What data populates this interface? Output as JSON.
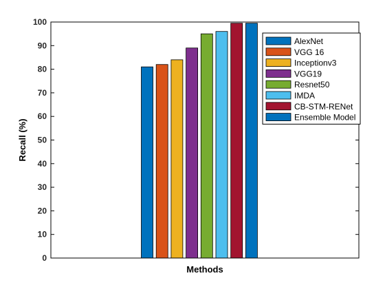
{
  "chart_data": {
    "type": "bar",
    "xlabel": "Methods",
    "ylabel": "Recall (%)",
    "ylim": [
      0,
      100
    ],
    "yticks": [
      0,
      10,
      20,
      30,
      40,
      50,
      60,
      70,
      80,
      90,
      100
    ],
    "grid": false,
    "legend_position": "top-right",
    "series": [
      {
        "name": "AlexNet",
        "value": 81,
        "color": "#0072BD"
      },
      {
        "name": "VGG 16",
        "value": 82,
        "color": "#D95319"
      },
      {
        "name": "Inceptionv3",
        "value": 84,
        "color": "#EDB120"
      },
      {
        "name": "VGG19",
        "value": 89,
        "color": "#7E2F8E"
      },
      {
        "name": "Resnet50",
        "value": 95,
        "color": "#77AC30"
      },
      {
        "name": "IMDA",
        "value": 96,
        "color": "#4DBEEE"
      },
      {
        "name": "CB-STM-RENet",
        "value": 99.5,
        "color": "#A2142F"
      },
      {
        "name": "Ensemble Model",
        "value": 99.5,
        "color": "#0072BD"
      }
    ]
  }
}
